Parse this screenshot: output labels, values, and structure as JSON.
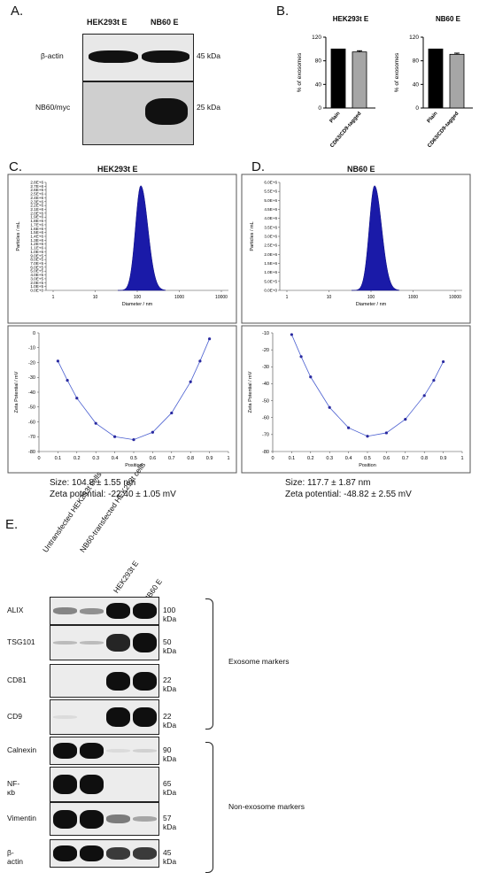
{
  "panels": {
    "a": "A.",
    "b": "B.",
    "c": "C.",
    "d": "D.",
    "e": "E."
  },
  "panelA": {
    "lanes": [
      "HEK293t E",
      "NB60 E"
    ],
    "rows": [
      {
        "label": "β-actin",
        "kda": "45 kDa"
      },
      {
        "label": "NB60/myc",
        "kda": "25 kDa"
      }
    ]
  },
  "panelB": {
    "charts": [
      {
        "title": "HEK293t E",
        "ylabel": "% of exosomes",
        "yticks": [
          "0",
          "40",
          "80",
          "120"
        ],
        "categories": [
          "Plain",
          "CD63/CD9-tagged"
        ]
      },
      {
        "title": "NB60 E",
        "ylabel": "% of exosomes",
        "yticks": [
          "0",
          "40",
          "80",
          "120"
        ],
        "categories": [
          "Plain",
          "CD63/CD9-tagged"
        ]
      }
    ]
  },
  "panelC": {
    "title": "HEK293t E",
    "size": "Size: 104.8 ± 1.55 nm",
    "zeta": "Zeta potential: -22.40 ± 1.05 mV",
    "hist": {
      "ylabel": "Particles / mL",
      "xlabel": "Diameter / nm",
      "yticks": [
        "0.0E+0",
        "1.0E+5",
        "2.0E+5",
        "3.0E+5",
        "4.0E+5",
        "5.0E+5",
        "6.0E+5",
        "7.0E+5",
        "8.0E+5",
        "9.0E+5",
        "1.0E+6",
        "1.1E+6",
        "1.2E+6",
        "1.3E+6",
        "1.4E+6",
        "1.5E+6",
        "1.6E+6",
        "1.7E+6",
        "1.8E+6",
        "1.9E+6",
        "2.0E+6",
        "2.1E+6",
        "2.2E+6",
        "2.3E+6",
        "2.4E+6",
        "2.5E+6",
        "2.6E+6",
        "2.7E+6",
        "2.8E+6"
      ],
      "xticks": [
        "1",
        "10",
        "100",
        "1000",
        "10000"
      ]
    },
    "zp": {
      "ylabel": "Zeta Potential / mV",
      "xlabel": "Position",
      "yticks": [
        "0",
        "-10",
        "-20",
        "-30",
        "-40",
        "-50",
        "-60",
        "-70",
        "-80"
      ],
      "xticks": [
        "0",
        "0.1",
        "0.2",
        "0.3",
        "0.4",
        "0.5",
        "0.6",
        "0.7",
        "0.8",
        "0.9",
        "1"
      ]
    }
  },
  "panelD": {
    "title": "NB60 E",
    "size": "Size: 117.7 ± 1.87 nm",
    "zeta": "Zeta potential: -48.82 ± 2.55 mV",
    "hist": {
      "ylabel": "Particles / mL",
      "xlabel": "Diameter / nm",
      "yticks": [
        "0.0E+0",
        "5.0E+5",
        "1.0E+6",
        "1.5E+6",
        "2.0E+6",
        "2.5E+6",
        "3.0E+6",
        "3.5E+6",
        "4.0E+6",
        "4.5E+6",
        "5.0E+6",
        "5.5E+6",
        "6.0E+6"
      ],
      "xticks": [
        "1",
        "10",
        "100",
        "1000",
        "10000"
      ]
    },
    "zp": {
      "ylabel": "Zeta Potential / mV",
      "xlabel": "Position",
      "yticks": [
        "-10",
        "-20",
        "-30",
        "-40",
        "-50",
        "-60",
        "-70",
        "-80"
      ],
      "xticks": [
        "0",
        "0.1",
        "0.2",
        "0.3",
        "0.4",
        "0.5",
        "0.6",
        "0.7",
        "0.8",
        "0.9",
        "1"
      ]
    }
  },
  "panelE": {
    "lanes": [
      "Untransfected HEK293t cells",
      "NB60-transfected HEK293t cells",
      "HEK293t E",
      "NB60 E"
    ],
    "rows": [
      {
        "label": "ALIX",
        "kda": "100 kDa"
      },
      {
        "label": "TSG101",
        "kda": "50 kDa"
      },
      {
        "label": "CD81",
        "kda": "22 kDa"
      },
      {
        "label": "CD9",
        "kda": "22 kDa"
      },
      {
        "label": "Calnexin",
        "kda": "90 kDa"
      },
      {
        "label": "NF-κb",
        "kda": "65 kDa"
      },
      {
        "label": "Vimentin",
        "kda": "57 kDa"
      },
      {
        "label": "β-actin",
        "kda": "45 kDa"
      }
    ],
    "groups": [
      "Exosome markers",
      "Non-exosome markers"
    ]
  },
  "chart_data": [
    {
      "type": "bar",
      "panel": "B",
      "title": "HEK293t E",
      "ylabel": "% of exosomes",
      "categories": [
        "Plain",
        "CD63/CD9-tagged"
      ],
      "values": [
        100,
        95
      ],
      "errors": [
        0,
        2
      ],
      "ylim": [
        0,
        120
      ],
      "colors": [
        "#000000",
        "#a6a6a6"
      ]
    },
    {
      "type": "bar",
      "panel": "B",
      "title": "NB60 E",
      "ylabel": "% of exosomes",
      "categories": [
        "Plain",
        "CD63/CD9-tagged"
      ],
      "values": [
        100,
        91
      ],
      "errors": [
        0,
        2
      ],
      "ylim": [
        0,
        120
      ],
      "colors": [
        "#000000",
        "#a6a6a6"
      ]
    },
    {
      "type": "line",
      "panel": "C",
      "title": "HEK293t E",
      "xlabel": "Position",
      "ylabel": "Zeta Potential / mV",
      "xlim": [
        0,
        1
      ],
      "ylim": [
        -80,
        0
      ],
      "x": [
        0.1,
        0.15,
        0.2,
        0.3,
        0.4,
        0.5,
        0.6,
        0.7,
        0.8,
        0.85,
        0.9
      ],
      "y": [
        -19,
        -32,
        -44,
        -61,
        -70,
        -72,
        -67,
        -54,
        -33,
        -19,
        -4
      ]
    },
    {
      "type": "line",
      "panel": "D",
      "title": "NB60 E",
      "xlabel": "Position",
      "ylabel": "Zeta Potential / mV",
      "xlim": [
        0,
        1
      ],
      "ylim": [
        -80,
        -10
      ],
      "x": [
        0.1,
        0.15,
        0.2,
        0.3,
        0.4,
        0.5,
        0.6,
        0.7,
        0.8,
        0.85,
        0.9
      ],
      "y": [
        -11,
        -24,
        -36,
        -54,
        -66,
        -71,
        -69,
        -61,
        -47,
        -38,
        -27
      ]
    }
  ]
}
